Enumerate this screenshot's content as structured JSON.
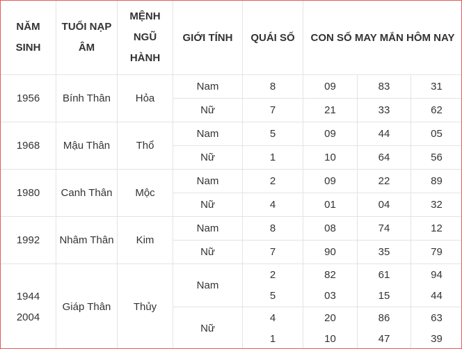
{
  "header": {
    "nam_sinh": [
      "NĂM",
      "SINH"
    ],
    "nap_am": [
      "TUỔI NẠP",
      "ÂM"
    ],
    "menh": [
      "MỆNH",
      "NGŨ",
      "HÀNH"
    ],
    "gioi_tinh": "GIỚI TÍNH",
    "quai_so": "QUÁI SỐ",
    "con_so": "CON SỐ MAY MẮN HÔM NAY"
  },
  "groups": [
    {
      "years": [
        "1956"
      ],
      "nap_am": "Bính Thân",
      "menh": "Hỏa",
      "genders": [
        {
          "label": "Nam",
          "quai": [
            "8"
          ],
          "nums": [
            [
              "09",
              "83",
              "31"
            ]
          ]
        },
        {
          "label": "Nữ",
          "quai": [
            "7"
          ],
          "nums": [
            [
              "21",
              "33",
              "62"
            ]
          ]
        }
      ]
    },
    {
      "years": [
        "1968"
      ],
      "nap_am": "Mậu Thân",
      "menh": "Thổ",
      "genders": [
        {
          "label": "Nam",
          "quai": [
            "5"
          ],
          "nums": [
            [
              "09",
              "44",
              "05"
            ]
          ]
        },
        {
          "label": "Nữ",
          "quai": [
            "1"
          ],
          "nums": [
            [
              "10",
              "64",
              "56"
            ]
          ]
        }
      ]
    },
    {
      "years": [
        "1980"
      ],
      "nap_am": "Canh Thân",
      "menh": "Mộc",
      "genders": [
        {
          "label": "Nam",
          "quai": [
            "2"
          ],
          "nums": [
            [
              "09",
              "22",
              "89"
            ]
          ]
        },
        {
          "label": "Nữ",
          "quai": [
            "4"
          ],
          "nums": [
            [
              "01",
              "04",
              "32"
            ]
          ]
        }
      ]
    },
    {
      "years": [
        "1992"
      ],
      "nap_am": "Nhâm Thân",
      "menh": "Kim",
      "genders": [
        {
          "label": "Nam",
          "quai": [
            "8"
          ],
          "nums": [
            [
              "08",
              "74",
              "12"
            ]
          ]
        },
        {
          "label": "Nữ",
          "quai": [
            "7"
          ],
          "nums": [
            [
              "90",
              "35",
              "79"
            ]
          ]
        }
      ]
    },
    {
      "years": [
        "1944",
        "2004"
      ],
      "nap_am": "Giáp Thân",
      "menh": "Thủy",
      "genders": [
        {
          "label": "Nam",
          "quai": [
            "2",
            "5"
          ],
          "nums": [
            [
              "82",
              "61",
              "94"
            ],
            [
              "03",
              "15",
              "44"
            ]
          ]
        },
        {
          "label": "Nữ",
          "quai": [
            "4",
            "1"
          ],
          "nums": [
            [
              "20",
              "86",
              "63"
            ],
            [
              "10",
              "47",
              "39"
            ]
          ]
        }
      ]
    }
  ],
  "colors": {
    "border": "#e3e3e3",
    "frame": "#e05a5a",
    "text": "#333333"
  }
}
